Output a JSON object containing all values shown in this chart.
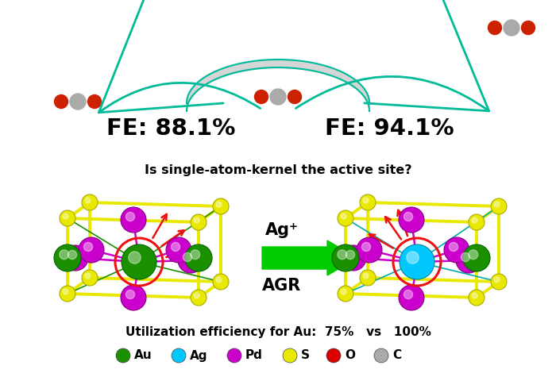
{
  "fe_left": "FE: 88.1%",
  "fe_right": "FE: 94.1%",
  "question": "Is single-atom-kernel the active site?",
  "ag_label": "Ag⁺",
  "agr_label": "AGR",
  "legend_items": [
    {
      "label": "Au",
      "color": "#1a9000"
    },
    {
      "label": "Ag",
      "color": "#00c8ff"
    },
    {
      "label": "Pd",
      "color": "#cc00cc"
    },
    {
      "label": "S",
      "color": "#e8e800"
    },
    {
      "label": "O",
      "color": "#dd0000"
    },
    {
      "label": "C",
      "color": "#aaaaaa"
    }
  ],
  "bg_color": "#ffffff",
  "teal_color": "#00bb99",
  "red_arrow_color": "#ee1111",
  "circle_color": "#ee1111",
  "green_arrow_color": "#00cc00",
  "au_color": "#1a9000",
  "ag_color": "#00c8ff",
  "pd_color": "#cc00cc",
  "s_color": "#e8e800",
  "gray_color": "#cccccc",
  "red_color": "#dd0000"
}
